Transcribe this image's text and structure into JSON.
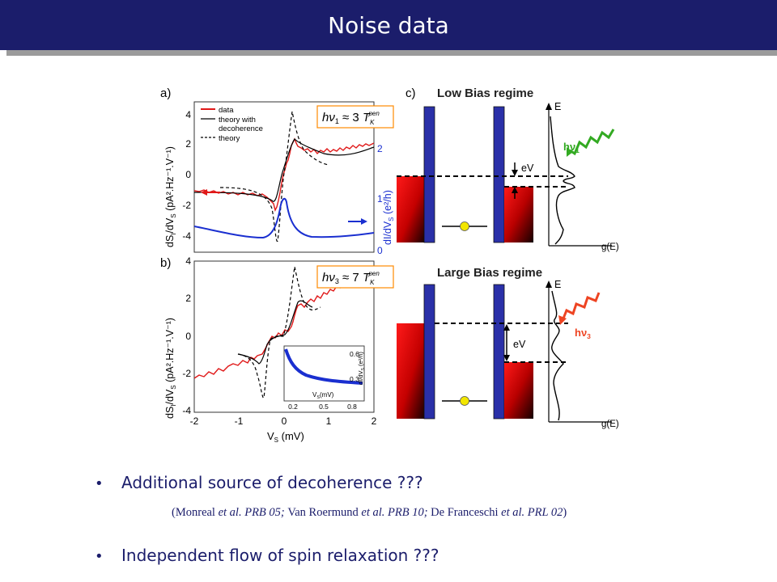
{
  "slide": {
    "title": "Noise data",
    "bullets": [
      {
        "text": "Additional source of decoherence ???"
      },
      {
        "text": "Independent flow of spin relaxation ???"
      }
    ],
    "citation": {
      "open": "(",
      "ref1_author": "Monreal",
      "ref1_etal": " et al.",
      "ref1_journal": " PRB 05; ",
      "ref2_author": "Van Roermund",
      "ref2_etal": " et al.",
      "ref2_journal": " PRB 10; ",
      "ref3_author": "De Franceschi",
      "ref3_etal": " et al.",
      "ref3_journal": " PRL 02",
      "close": ")"
    }
  },
  "figure": {
    "panel_a_label": "a)",
    "panel_b_label": "b)",
    "panel_c_label": "c)",
    "legend": [
      "data",
      "theory with",
      "decoherence",
      "theory"
    ],
    "left_axis_label": "dS",
    "left_axis_sub": "I",
    "left_axis_mid": "/dV",
    "left_axis_sub2": "S",
    "left_axis_tail": " (pA².Hz⁻¹.V⁻¹)",
    "right_axis_label": "dI/dV",
    "right_axis_sub": "S",
    "right_axis_tail": " (e²/h)",
    "x_axis_label": "V",
    "x_axis_sub": "S",
    "x_axis_tail": " (mV)",
    "yticks_a": [
      "4",
      "2",
      "0",
      "-2",
      "-4"
    ],
    "yticks_b": [
      "4",
      "2",
      "0",
      "-2",
      "-4"
    ],
    "right_ticks": [
      "2",
      "1",
      "0"
    ],
    "xticks": [
      "-2",
      "-1",
      "0",
      "1",
      "2"
    ],
    "inset_yticks": [
      "0.6",
      "0.3"
    ],
    "inset_xticks": [
      "0.2",
      "0.5",
      "0.8"
    ],
    "inset_xlabel": "V",
    "inset_xsub": "S",
    "inset_xtail": "(mV)",
    "inset_ylabel": "dI/dV",
    "inset_ysub": "S",
    "inset_ytail": " (e²/h)",
    "formula1_h": "h",
    "formula1_nu": "ν",
    "formula1_sub": "1",
    "formula1_rel": " ≈ 3 ",
    "formula1_T": "T",
    "formula1_Tsub": "K",
    "formula1_Tsup": "pen",
    "formula3_h": "h",
    "formula3_nu": "ν",
    "formula3_sub": "3",
    "formula3_rel": " ≈ 7 ",
    "formula3_T": "T",
    "formula3_Tsub": "K",
    "formula3_Tsup": "pen",
    "low_bias_title": "Low Bias regime",
    "large_bias_title": "Large Bias regime",
    "energy_label": "E",
    "ev_label": "eV",
    "g_label": "g(E)",
    "hv1_label": "hν",
    "hv1_sub": "1",
    "hv3_label": "hν",
    "hv3_sub": "3"
  },
  "colors": {
    "title_bar": "#1b1d6b",
    "text_navy": "#1b1d6b",
    "data_red": "#e01818",
    "blue_curve": "#1a2fd0",
    "barrier_blue": "#2a30a8",
    "formula_border": "#ff8a00",
    "photon_green": "#33aa22",
    "photon_red": "#ee4422",
    "dot_yellow": "#f2e600"
  }
}
